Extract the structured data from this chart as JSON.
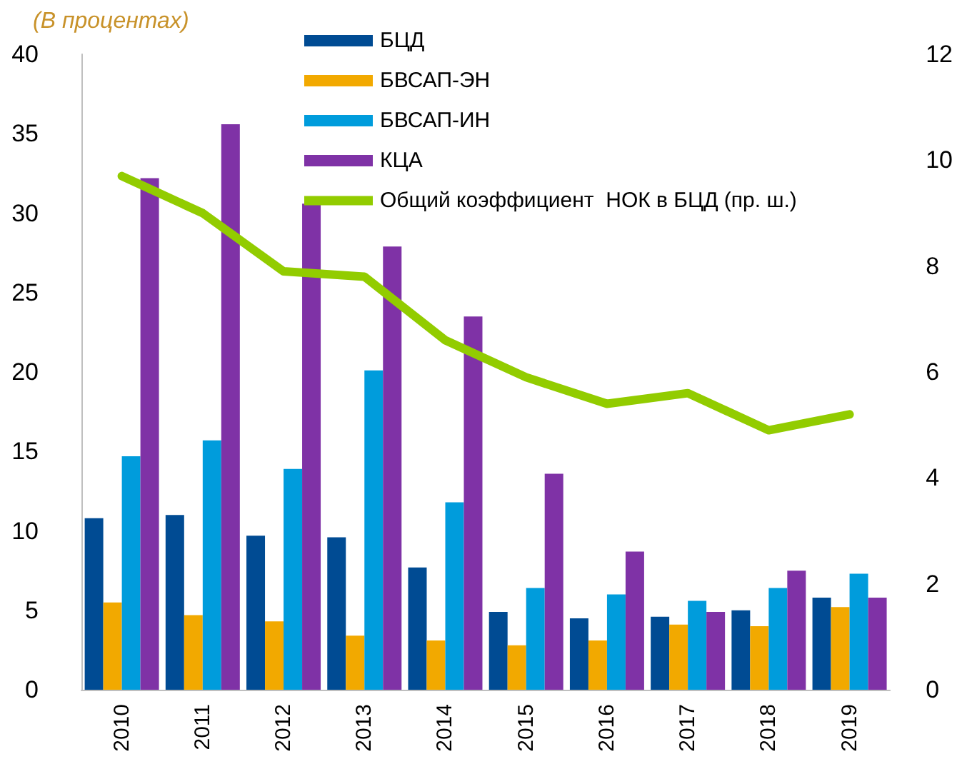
{
  "chart_data": {
    "type": "bar",
    "title": "(В процентах)",
    "categories": [
      "2010",
      "2011",
      "2012",
      "2013",
      "2014",
      "2015",
      "2016",
      "2017",
      "2018",
      "2019"
    ],
    "series": [
      {
        "name": "БЦД",
        "color": "#004b93",
        "values": [
          10.8,
          11.0,
          9.7,
          9.6,
          7.7,
          4.9,
          4.5,
          4.6,
          5.0,
          5.8
        ]
      },
      {
        "name": "БВСАП-ЭН",
        "color": "#f2a900",
        "values": [
          5.5,
          4.7,
          4.3,
          3.4,
          3.1,
          2.8,
          3.1,
          4.1,
          4.0,
          5.2
        ]
      },
      {
        "name": "БВСАП-ИН",
        "color": "#009cdc",
        "values": [
          14.7,
          15.7,
          13.9,
          20.1,
          11.8,
          6.4,
          6.0,
          5.6,
          6.4,
          7.3
        ]
      },
      {
        "name": "КЦА",
        "color": "#7f32a6",
        "values": [
          32.2,
          35.6,
          30.6,
          27.9,
          23.5,
          13.6,
          8.7,
          4.9,
          7.5,
          5.8
        ]
      },
      {
        "name": "Общий коэффициент  НОК в БЦД (пр. ш.)",
        "type": "line",
        "axis": "y2",
        "color": "#92cc00",
        "values": [
          9.7,
          9.0,
          7.9,
          7.8,
          6.6,
          5.9,
          5.4,
          5.6,
          4.9,
          5.2
        ]
      }
    ],
    "ylim": [
      0,
      40
    ],
    "yticks": [
      0,
      5,
      10,
      15,
      20,
      25,
      30,
      35,
      40
    ],
    "y2lim": [
      0,
      12
    ],
    "y2ticks": [
      0,
      2,
      4,
      6,
      8,
      10,
      12
    ],
    "grid": false,
    "legend": "top right",
    "marker": "none",
    "line_style": "solid"
  }
}
